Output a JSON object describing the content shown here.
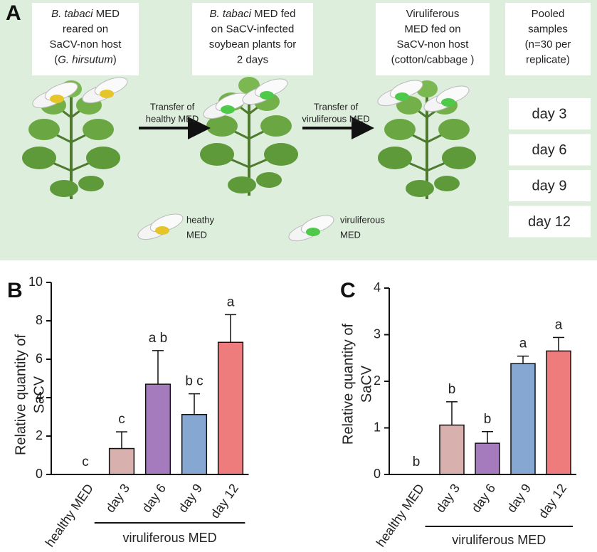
{
  "diagram": {
    "panel": "A",
    "boxes": [
      {
        "lines": [
          [
            {
              "text": "B. tabaci",
              "italic": true
            },
            {
              "text": " MED"
            }
          ],
          [
            {
              "text": "reared on"
            }
          ],
          [
            {
              "text": "SaCV-non host"
            }
          ],
          [
            {
              "text": "("
            },
            {
              "text": "G. hirsutum",
              "italic": true
            },
            {
              "text": ")"
            }
          ]
        ]
      },
      {
        "lines": [
          [
            {
              "text": "B. tabaci",
              "italic": true
            },
            {
              "text": " MED fed"
            }
          ],
          [
            {
              "text": "on SaCV-infected"
            }
          ],
          [
            {
              "text": "soybean plants for"
            }
          ],
          [
            {
              "text": "2 days"
            }
          ]
        ]
      },
      {
        "lines": [
          [
            {
              "text": "Viruliferous"
            }
          ],
          [
            {
              "text": "MED fed on"
            }
          ],
          [
            {
              "text": "SaCV-non host"
            }
          ],
          [
            {
              "text": "(cotton/cabbage )"
            }
          ]
        ]
      },
      {
        "lines": [
          [
            {
              "text": "Pooled"
            }
          ],
          [
            {
              "text": "samples"
            }
          ],
          [
            {
              "text": "(n=30 per"
            }
          ],
          [
            {
              "text": "replicate)"
            }
          ]
        ]
      }
    ],
    "arrows": [
      {
        "lines": [
          "Transfer of",
          "healthy MED"
        ]
      },
      {
        "lines": [
          "Transfer of",
          "viruliferous MED"
        ]
      }
    ],
    "days": [
      "day 3",
      "day 6",
      "day 9",
      "day 12"
    ],
    "legend": [
      {
        "lines": [
          "heathy",
          "MED"
        ]
      },
      {
        "lines": [
          "viruliferous",
          "MED"
        ]
      }
    ]
  },
  "chart_data": [
    {
      "type": "bar",
      "panel": "B",
      "ylabel_lines": [
        "Relative quantity of",
        "SaCV"
      ],
      "categories": [
        "healthy MED",
        "day 3",
        "day 6",
        "day 9",
        "day 12"
      ],
      "values": [
        0,
        1.35,
        4.7,
        3.12,
        6.88
      ],
      "errors": [
        null,
        0.87,
        1.75,
        1.08,
        1.44
      ],
      "significance": [
        "c",
        "c",
        "a b",
        "b c",
        "a"
      ],
      "colors": [
        "#d8b0ae",
        "#d8b0ae",
        "#a57bbd",
        "#86a7d1",
        "#ef7c7c"
      ],
      "group_label": "viruliferous MED",
      "ylim": [
        0,
        10
      ],
      "yticks": [
        0,
        2,
        4,
        6,
        8,
        10
      ]
    },
    {
      "type": "bar",
      "panel": "C",
      "ylabel_lines": [
        "Relative quantity of",
        "SaCV"
      ],
      "categories": [
        "healthy MED",
        "day 3",
        "day 6",
        "day 9",
        "day 12"
      ],
      "values": [
        0,
        1.06,
        0.67,
        2.38,
        2.65
      ],
      "errors": [
        null,
        0.5,
        0.25,
        0.16,
        0.29
      ],
      "significance": [
        "b",
        "b",
        "b",
        "a",
        "a"
      ],
      "colors": [
        "#d8b0ae",
        "#d8b0ae",
        "#a57bbd",
        "#86a7d1",
        "#ef7c7c"
      ],
      "group_label": "viruliferous MED",
      "ylim": [
        0,
        4
      ],
      "yticks": [
        0,
        1,
        2,
        3,
        4
      ]
    }
  ]
}
